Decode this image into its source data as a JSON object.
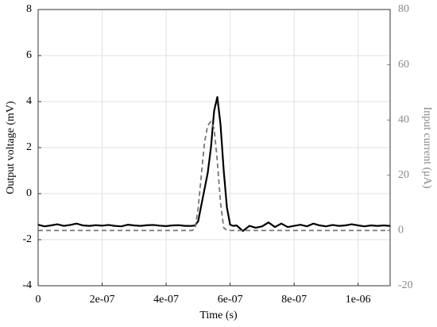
{
  "chart_data": {
    "type": "line",
    "xlabel": "Time (s)",
    "ylabel": "Output voltage (mV)",
    "y2label": "Input current (μA)",
    "xlim": [
      0,
      1.1e-06
    ],
    "xticks": [
      0,
      {
        "value": 2e-07,
        "label": "2e-07"
      },
      {
        "value": 4e-07,
        "label": "4e-07"
      },
      {
        "value": 6e-07,
        "label": "6e-07"
      },
      {
        "value": 8e-07,
        "label": "8e-07"
      },
      {
        "value": 1e-06,
        "label": "1e-06"
      }
    ],
    "ylim": [
      -4,
      8
    ],
    "yticks": [
      -4,
      -2,
      0,
      2,
      4,
      6,
      8
    ],
    "y2lim": [
      -20,
      80
    ],
    "y2ticks": [
      -20,
      0,
      20,
      40,
      60,
      80
    ],
    "grid": true,
    "x": [
      0,
      2e-08,
      4e-08,
      6e-08,
      8e-08,
      1e-07,
      1.2e-07,
      1.4e-07,
      1.6e-07,
      1.8e-07,
      2e-07,
      2.2e-07,
      2.4e-07,
      2.6e-07,
      2.8e-07,
      3e-07,
      3.2e-07,
      3.4e-07,
      3.6e-07,
      3.8e-07,
      4e-07,
      4.2e-07,
      4.4e-07,
      4.6e-07,
      4.8e-07,
      4.9e-07,
      5e-07,
      5.1e-07,
      5.2e-07,
      5.3e-07,
      5.4e-07,
      5.5e-07,
      5.6e-07,
      5.7e-07,
      5.8e-07,
      5.9e-07,
      6e-07,
      6.1e-07,
      6.2e-07,
      6.4e-07,
      6.6e-07,
      6.8e-07,
      7e-07,
      7.2e-07,
      7.4e-07,
      7.6e-07,
      7.8e-07,
      8e-07,
      8.2e-07,
      8.4e-07,
      8.6e-07,
      8.8e-07,
      9e-07,
      9.2e-07,
      9.4e-07,
      9.6e-07,
      9.8e-07,
      1e-06,
      1.02e-06,
      1.04e-06,
      1.06e-06,
      1.08e-06,
      1.1e-06
    ],
    "series": [
      {
        "name": "Output voltage",
        "color": "#000000",
        "dash": false,
        "axis": "y",
        "values": [
          -1.35,
          -1.42,
          -1.38,
          -1.33,
          -1.4,
          -1.36,
          -1.3,
          -1.38,
          -1.4,
          -1.37,
          -1.39,
          -1.36,
          -1.4,
          -1.42,
          -1.35,
          -1.38,
          -1.4,
          -1.37,
          -1.36,
          -1.39,
          -1.41,
          -1.38,
          -1.37,
          -1.4,
          -1.4,
          -1.38,
          -1.2,
          -0.5,
          0.2,
          0.9,
          2.0,
          3.6,
          4.2,
          3.0,
          1.0,
          -0.6,
          -1.35,
          -1.4,
          -1.38,
          -1.62,
          -1.4,
          -1.48,
          -1.42,
          -1.25,
          -1.45,
          -1.3,
          -1.45,
          -1.4,
          -1.35,
          -1.42,
          -1.3,
          -1.38,
          -1.42,
          -1.36,
          -1.4,
          -1.38,
          -1.33,
          -1.38,
          -1.42,
          -1.38,
          -1.4,
          -1.38,
          -1.4
        ]
      },
      {
        "name": "Input current",
        "color": "#777777",
        "dash": true,
        "axis": "y2",
        "values": [
          0,
          0,
          0,
          0,
          0,
          0,
          0,
          0,
          0,
          0,
          0,
          0,
          0,
          0,
          0,
          0,
          0,
          0,
          0,
          0,
          0,
          0,
          0,
          0,
          0,
          0.5,
          8,
          20,
          32,
          38,
          39.5,
          37,
          25,
          10,
          1,
          0,
          0,
          0,
          0,
          0,
          0,
          0,
          0,
          0,
          0,
          0,
          0,
          0,
          0,
          0,
          0,
          0,
          0,
          0,
          0,
          0,
          0,
          0,
          0,
          0,
          0,
          0,
          0
        ]
      }
    ]
  }
}
